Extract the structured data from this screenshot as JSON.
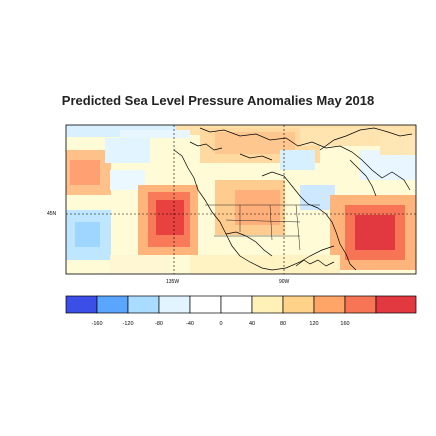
{
  "title": "Predicted Sea Level Pressure Anomalies May 2018",
  "axis_labels": {
    "lat_45n": "45N",
    "lon_135w": "135W",
    "lon_90w": "90W"
  },
  "colorbar": {
    "ticks": [
      "-160",
      "-120",
      "-80",
      "-40",
      "0",
      "40",
      "80",
      "120",
      "160"
    ],
    "colors": [
      "#3b4ee8",
      "#5aa6ff",
      "#a9dcff",
      "#e2f4ff",
      "#ffffff",
      "#ffffff",
      "#fff1b8",
      "#ffd28a",
      "#ffa568",
      "#f77555",
      "#e23840"
    ]
  }
}
